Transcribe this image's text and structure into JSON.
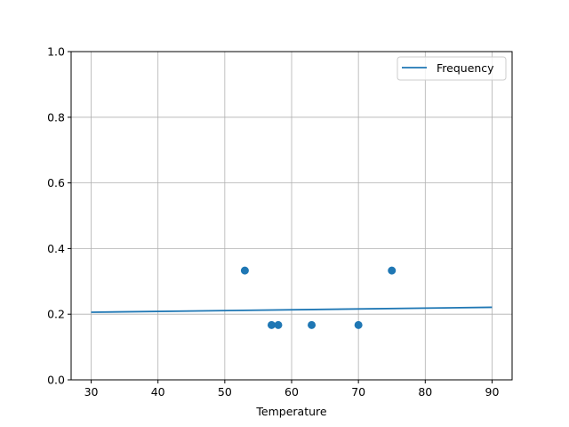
{
  "chart_data": {
    "type": "scatter",
    "title": "",
    "xlabel": "Temperature",
    "ylabel": "",
    "xlim": [
      27,
      93
    ],
    "ylim": [
      0,
      1
    ],
    "xticks": [
      30,
      40,
      50,
      60,
      70,
      80,
      90
    ],
    "yticks": [
      0.0,
      0.2,
      0.4,
      0.6,
      0.8,
      1.0
    ],
    "xtick_labels": [
      "30",
      "40",
      "50",
      "60",
      "70",
      "80",
      "90"
    ],
    "ytick_labels": [
      "0.0",
      "0.2",
      "0.4",
      "0.6",
      "0.8",
      "1.0"
    ],
    "grid": true,
    "legend": {
      "placement": "top-right",
      "entries": [
        "Frequency"
      ]
    },
    "color": "#1f77b4",
    "points": {
      "x": [
        53,
        57,
        58,
        63,
        70,
        75
      ],
      "y": [
        0.333,
        0.167,
        0.167,
        0.167,
        0.167,
        0.333
      ]
    },
    "series": [
      {
        "name": "Frequency",
        "type": "line",
        "x": [
          30,
          90
        ],
        "y": [
          0.206,
          0.221
        ]
      }
    ]
  }
}
